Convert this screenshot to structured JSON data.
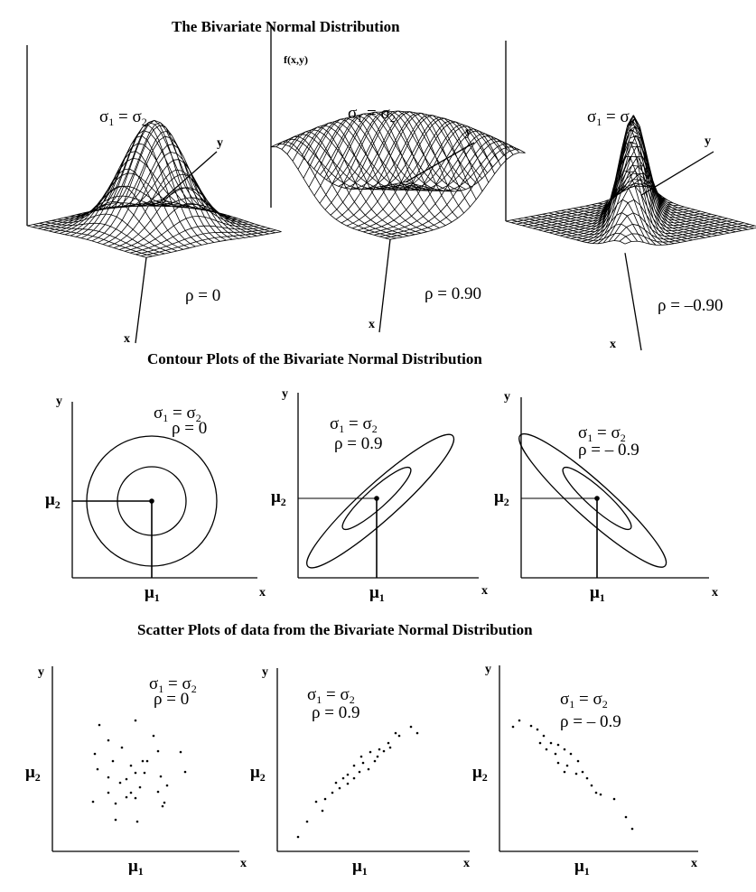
{
  "titles": {
    "surface": "The Bivariate Normal Distribution",
    "contour": "Contour Plots of the Bivariate Normal Distribution",
    "scatter": "Scatter Plots of data from the Bivariate Normal Distribution"
  },
  "surface_panels": [
    {
      "sigma": "σ1 = σ2",
      "rho": "ρ = 0",
      "rho_value": 0,
      "zlabel": "",
      "xlabel": "x",
      "ylabel": "y"
    },
    {
      "sigma": "σ1 = σ2",
      "rho": "ρ = 0.90",
      "rho_value": 0.9,
      "zlabel": "f(x,y)",
      "xlabel": "x",
      "ylabel": "y"
    },
    {
      "sigma": "σ1 = σ2",
      "rho": "ρ = –0.90",
      "rho_value": -0.9,
      "zlabel": "",
      "xlabel": "x",
      "ylabel": "y"
    }
  ],
  "contour_panels": [
    {
      "sigma": "σ1 = σ2",
      "rho": "ρ = 0",
      "rho_value": 0,
      "xlabel": "x",
      "ylabel": "y",
      "mu1": "μ1",
      "mu2": "μ2"
    },
    {
      "sigma": "σ1 = σ2",
      "rho": "ρ = 0.9",
      "rho_value": 0.9,
      "xlabel": "x",
      "ylabel": "y",
      "mu1": "μ1",
      "mu2": "μ2"
    },
    {
      "sigma": "σ1 = σ2",
      "rho": "ρ = – 0.9",
      "rho_value": -0.9,
      "xlabel": "x",
      "ylabel": "y",
      "mu1": "μ1",
      "mu2": "μ2"
    }
  ],
  "scatter_panels": [
    {
      "sigma": "σ1 = σ2",
      "rho": "ρ = 0",
      "rho_value": 0,
      "xlabel": "x",
      "ylabel": "y",
      "mu1": "μ1",
      "mu2": "μ2"
    },
    {
      "sigma": "σ1 = σ2",
      "rho": "ρ = 0.9",
      "rho_value": 0.9,
      "xlabel": "x",
      "ylabel": "y",
      "mu1": "μ1",
      "mu2": "μ2"
    },
    {
      "sigma": "σ1 = σ2",
      "rho": "ρ = – 0.9",
      "rho_value": -0.9,
      "xlabel": "x",
      "ylabel": "y",
      "mu1": "μ1",
      "mu2": "μ2"
    }
  ]
}
